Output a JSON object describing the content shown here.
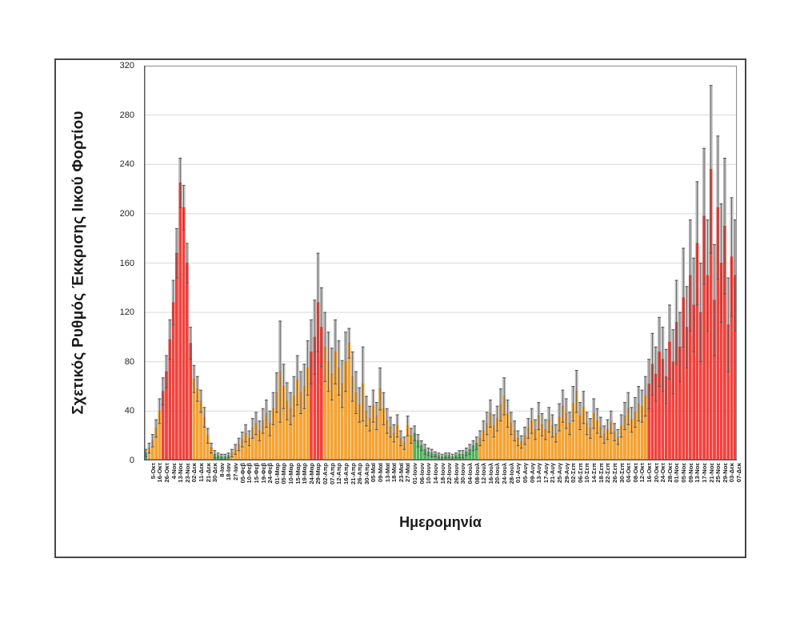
{
  "figure": {
    "x_title": "Ημερομηνία",
    "y_title": "Σχετικός Ρυθμός Έκκρισης Ιικού Φορτίου"
  },
  "chart_data": {
    "type": "bar",
    "title": "",
    "xlabel": "Ημερομηνία",
    "ylabel": "Σχετικός Ρυθμός Έκκρισης Ιικού Φορτίου",
    "ylim": [
      0,
      320
    ],
    "y_ticks": [
      0,
      40,
      80,
      120,
      160,
      200,
      240,
      280,
      320
    ],
    "grid": true,
    "legend": "none",
    "label_interval": 2,
    "categories": [
      "5-Οκτ",
      "16-Οκτ",
      "26-Οκτ",
      "4-Νοε",
      "13-Νοε",
      "23-Νοε",
      "02-Δεκ",
      "11-Δεκ",
      "21-Δεκ",
      "30-Δεκ",
      "8-Ιαν",
      "18-Ιαν",
      "27-Ιαν",
      "05-Φεβ",
      "10-Φεβ",
      "15-Φεβ",
      "19-Φεβ",
      "24-Φεβ",
      "01-Μαρ",
      "05-Μαρ",
      "10-Μαρ",
      "15-Μαρ",
      "19-Μαρ",
      "24-Μαρ",
      "29-Μαρ",
      "02-Απρ",
      "07-Απρ",
      "12-Απρ",
      "16-Απρ",
      "21-Απρ",
      "26-Απρ",
      "30-Απρ",
      "05-Μαϊ",
      "09-Μαϊ",
      "13-Μαϊ",
      "18-Μαϊ",
      "23-Μαϊ",
      "27-Μαϊ",
      "01-Ιουν",
      "06-Ιουν",
      "10-Ιουν",
      "14-Ιουν",
      "18-Ιουν",
      "22-Ιουν",
      "26-Ιουν",
      "30-Ιουν",
      "04-Ιουλ",
      "08-Ιουλ",
      "12-Ιουλ",
      "16-Ιουλ",
      "20-Ιουλ",
      "24-Ιουλ",
      "28-Ιουλ",
      "01-Αυγ",
      "05-Αυγ",
      "09-Αυγ",
      "13-Αυγ",
      "17-Αυγ",
      "21-Αυγ",
      "25-Αυγ",
      "29-Αυγ",
      "02-Σεπ",
      "06-Σεπ",
      "10-Σεπ",
      "14-Σεπ",
      "18-Σεπ",
      "22-Σεπ",
      "26-Σεπ",
      "30-Σεπ",
      "04-Οκτ",
      "08-Οκτ",
      "12-Οκτ",
      "16-Οκτ",
      "20-Οκτ",
      "24-Οκτ",
      "28-Οκτ",
      "01-Νοε",
      "05-Νοε",
      "09-Νοε",
      "13-Νοε",
      "17-Νοε",
      "21-Νοε",
      "25-Νοε",
      "29-Νοε",
      "03-Δεκ",
      "07-Δεκ"
    ],
    "bars_note": "each bar = [value, error, color_code]; color codes: t=teal g=green o=orange r=red",
    "bars": [
      [
        6,
        3,
        "t"
      ],
      [
        10,
        4,
        "o"
      ],
      [
        16,
        5,
        "o"
      ],
      [
        26,
        7,
        "o"
      ],
      [
        40,
        10,
        "o"
      ],
      [
        56,
        11,
        "r"
      ],
      [
        72,
        13,
        "r"
      ],
      [
        98,
        16,
        "r"
      ],
      [
        128,
        18,
        "r"
      ],
      [
        168,
        20,
        "r"
      ],
      [
        225,
        20,
        "r"
      ],
      [
        205,
        18,
        "r"
      ],
      [
        160,
        16,
        "r"
      ],
      [
        95,
        13,
        "r"
      ],
      [
        66,
        11,
        "o"
      ],
      [
        58,
        10,
        "o"
      ],
      [
        48,
        9,
        "o"
      ],
      [
        35,
        8,
        "o"
      ],
      [
        20,
        6,
        "o"
      ],
      [
        10,
        4,
        "o"
      ],
      [
        5,
        3,
        "g"
      ],
      [
        4,
        2,
        "g"
      ],
      [
        3,
        2,
        "g"
      ],
      [
        3,
        2,
        "g"
      ],
      [
        4,
        2,
        "g"
      ],
      [
        6,
        3,
        "o"
      ],
      [
        9,
        4,
        "o"
      ],
      [
        13,
        5,
        "o"
      ],
      [
        17,
        6,
        "o"
      ],
      [
        22,
        7,
        "o"
      ],
      [
        18,
        6,
        "o"
      ],
      [
        26,
        8,
        "o"
      ],
      [
        30,
        9,
        "o"
      ],
      [
        24,
        8,
        "o"
      ],
      [
        32,
        10,
        "o"
      ],
      [
        38,
        11,
        "o"
      ],
      [
        30,
        10,
        "o"
      ],
      [
        42,
        13,
        "o"
      ],
      [
        55,
        16,
        "o"
      ],
      [
        72,
        41,
        "o"
      ],
      [
        60,
        18,
        "o"
      ],
      [
        48,
        15,
        "o"
      ],
      [
        42,
        13,
        "o"
      ],
      [
        52,
        16,
        "o"
      ],
      [
        65,
        20,
        "o"
      ],
      [
        55,
        17,
        "o"
      ],
      [
        60,
        18,
        "o"
      ],
      [
        75,
        22,
        "o"
      ],
      [
        88,
        26,
        "r"
      ],
      [
        100,
        30,
        "r"
      ],
      [
        128,
        40,
        "r"
      ],
      [
        108,
        32,
        "r"
      ],
      [
        92,
        28,
        "o"
      ],
      [
        80,
        24,
        "o"
      ],
      [
        70,
        21,
        "o"
      ],
      [
        88,
        26,
        "o"
      ],
      [
        75,
        22,
        "o"
      ],
      [
        62,
        19,
        "o"
      ],
      [
        80,
        24,
        "o"
      ],
      [
        95,
        12,
        "o"
      ],
      [
        68,
        20,
        "o"
      ],
      [
        55,
        17,
        "o"
      ],
      [
        45,
        14,
        "o"
      ],
      [
        62,
        30,
        "o"
      ],
      [
        40,
        12,
        "o"
      ],
      [
        34,
        10,
        "o"
      ],
      [
        44,
        13,
        "o"
      ],
      [
        36,
        11,
        "o"
      ],
      [
        58,
        17,
        "o"
      ],
      [
        42,
        13,
        "o"
      ],
      [
        32,
        10,
        "o"
      ],
      [
        27,
        8,
        "o"
      ],
      [
        22,
        7,
        "o"
      ],
      [
        28,
        9,
        "o"
      ],
      [
        18,
        6,
        "o"
      ],
      [
        14,
        5,
        "o"
      ],
      [
        28,
        8,
        "o"
      ],
      [
        20,
        6,
        "o"
      ],
      [
        22,
        6,
        "g"
      ],
      [
        16,
        5,
        "g"
      ],
      [
        12,
        4,
        "g"
      ],
      [
        9,
        4,
        "g"
      ],
      [
        7,
        3,
        "g"
      ],
      [
        6,
        3,
        "g"
      ],
      [
        5,
        2,
        "g"
      ],
      [
        4,
        2,
        "g"
      ],
      [
        3,
        2,
        "g"
      ],
      [
        4,
        2,
        "g"
      ],
      [
        4,
        2,
        "g"
      ],
      [
        3,
        2,
        "g"
      ],
      [
        4,
        2,
        "g"
      ],
      [
        5,
        3,
        "g"
      ],
      [
        5,
        3,
        "g"
      ],
      [
        7,
        3,
        "g"
      ],
      [
        9,
        4,
        "g"
      ],
      [
        12,
        4,
        "g"
      ],
      [
        14,
        5,
        "g"
      ],
      [
        18,
        6,
        "o"
      ],
      [
        24,
        8,
        "o"
      ],
      [
        30,
        9,
        "o"
      ],
      [
        38,
        11,
        "o"
      ],
      [
        28,
        9,
        "o"
      ],
      [
        34,
        10,
        "o"
      ],
      [
        45,
        13,
        "o"
      ],
      [
        52,
        15,
        "o"
      ],
      [
        38,
        11,
        "o"
      ],
      [
        30,
        9,
        "o"
      ],
      [
        24,
        8,
        "o"
      ],
      [
        18,
        6,
        "o"
      ],
      [
        15,
        5,
        "o"
      ],
      [
        20,
        7,
        "o"
      ],
      [
        26,
        8,
        "o"
      ],
      [
        32,
        10,
        "o"
      ],
      [
        25,
        8,
        "o"
      ],
      [
        36,
        11,
        "o"
      ],
      [
        29,
        9,
        "o"
      ],
      [
        25,
        8,
        "o"
      ],
      [
        33,
        10,
        "o"
      ],
      [
        28,
        9,
        "o"
      ],
      [
        22,
        7,
        "o"
      ],
      [
        35,
        11,
        "o"
      ],
      [
        44,
        13,
        "o"
      ],
      [
        38,
        12,
        "o"
      ],
      [
        30,
        9,
        "o"
      ],
      [
        46,
        14,
        "o"
      ],
      [
        56,
        17,
        "o"
      ],
      [
        36,
        11,
        "o"
      ],
      [
        43,
        13,
        "o"
      ],
      [
        30,
        9,
        "o"
      ],
      [
        26,
        8,
        "o"
      ],
      [
        38,
        12,
        "o"
      ],
      [
        32,
        10,
        "o"
      ],
      [
        27,
        8,
        "o"
      ],
      [
        21,
        7,
        "o"
      ],
      [
        25,
        8,
        "o"
      ],
      [
        31,
        9,
        "o"
      ],
      [
        23,
        7,
        "o"
      ],
      [
        19,
        6,
        "o"
      ],
      [
        28,
        9,
        "o"
      ],
      [
        36,
        11,
        "o"
      ],
      [
        42,
        13,
        "o"
      ],
      [
        33,
        10,
        "o"
      ],
      [
        39,
        12,
        "o"
      ],
      [
        46,
        14,
        "o"
      ],
      [
        44,
        13,
        "o"
      ],
      [
        52,
        16,
        "o"
      ],
      [
        62,
        20,
        "r"
      ],
      [
        78,
        25,
        "r"
      ],
      [
        70,
        22,
        "r"
      ],
      [
        88,
        28,
        "r"
      ],
      [
        82,
        26,
        "r"
      ],
      [
        68,
        22,
        "r"
      ],
      [
        96,
        30,
        "r"
      ],
      [
        80,
        26,
        "r"
      ],
      [
        112,
        34,
        "r"
      ],
      [
        92,
        28,
        "r"
      ],
      [
        132,
        40,
        "r"
      ],
      [
        108,
        33,
        "r"
      ],
      [
        150,
        45,
        "r"
      ],
      [
        126,
        38,
        "r"
      ],
      [
        176,
        50,
        "r"
      ],
      [
        120,
        40,
        "r"
      ],
      [
        198,
        55,
        "r"
      ],
      [
        150,
        45,
        "r"
      ],
      [
        236,
        68,
        "r"
      ],
      [
        130,
        45,
        "r"
      ],
      [
        205,
        58,
        "r"
      ],
      [
        160,
        48,
        "r"
      ],
      [
        190,
        55,
        "r"
      ],
      [
        110,
        38,
        "r"
      ],
      [
        165,
        48,
        "r"
      ],
      [
        150,
        45,
        "r"
      ]
    ],
    "colors": {
      "teal": "#2FB5AF",
      "teal_border": "#1E8E89",
      "green": "#4CB85A",
      "green_border": "#2F8F3E",
      "orange": "#F9A42B",
      "orange_border": "#DB8A1F",
      "red": "#F6413B",
      "red_border": "#D32B28",
      "range_fill": "#CFCFCF",
      "range_border": "#9A9A9A",
      "error": "#5A5A5A",
      "grid": "#D9D9D9",
      "axis": "#595959",
      "plot_border": "#8C8C8C"
    }
  }
}
